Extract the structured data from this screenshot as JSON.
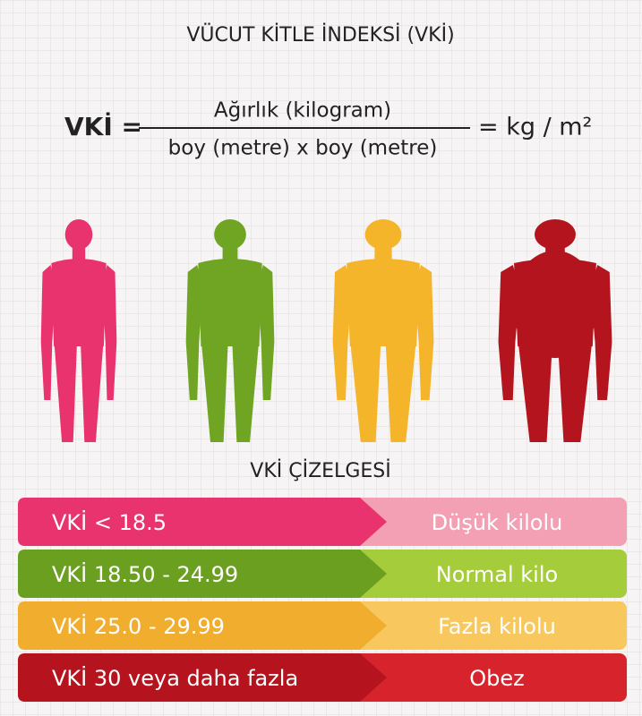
{
  "header": {
    "title": "VÜCUT KİTLE İNDEKSİ (VKİ)"
  },
  "formula": {
    "lhs": "VKİ =",
    "numerator": "Ağırlık (kilogram)",
    "denominator": "boy (metre) x boy (metre)",
    "result": "= kg / m²"
  },
  "table": {
    "title": "VKİ ÇİZELGESİ",
    "rows": [
      {
        "range": "VKİ < 18.5",
        "label": "Düşük kilolu",
        "color": "#e8336f",
        "light_color": "#f3a0b4"
      },
      {
        "range": "VKİ 18.50 - 24.99",
        "label": "Normal kilo",
        "color": "#6b9f20",
        "light_color": "#a5cc3a"
      },
      {
        "range": "VKİ 25.0 - 29.99",
        "label": "Fazla kilolu",
        "color": "#f1ae2e",
        "light_color": "#f8c85e"
      },
      {
        "range": "VKİ 30 veya daha fazla",
        "label": "Obez",
        "color": "#b5141f",
        "light_color": "#d7232b"
      }
    ]
  }
}
